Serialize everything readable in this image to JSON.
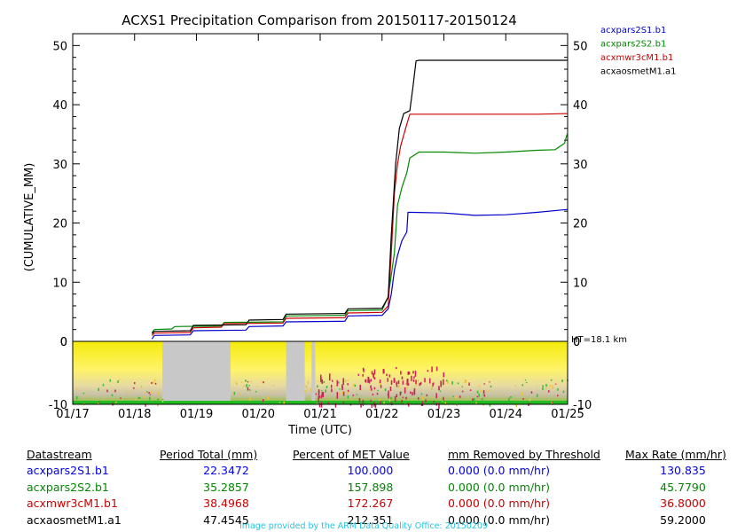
{
  "chart_data": {
    "type": "line",
    "title": "ACXS1 Precipitation Comparison from 20150117-20150124",
    "xlabel": "Time (UTC)",
    "ylabel": "(CUMULATIVE_MM)",
    "x_units": "days since 2015-01-17 00:00 UTC",
    "xlim": [
      0,
      8
    ],
    "ylim": [
      0,
      52
    ],
    "yticks": [
      0,
      10,
      20,
      30,
      40,
      50
    ],
    "xtick_labels": [
      "01/17",
      "01/18",
      "01/19",
      "01/20",
      "01/21",
      "01/22",
      "01/23",
      "01/24",
      "01/25"
    ],
    "legend_position": "top-right outside",
    "series": [
      {
        "name": "acxpars2S1.b1",
        "color": "#0000cc",
        "x": [
          1.28,
          1.32,
          1.9,
          1.95,
          2.8,
          2.85,
          3.4,
          3.45,
          4.4,
          4.45,
          5.0,
          5.1,
          5.15,
          5.2,
          5.25,
          5.32,
          5.4,
          5.42,
          5.5,
          6.0,
          6.5,
          7.0,
          7.5,
          8.0
        ],
        "values": [
          0.4,
          1.0,
          1.1,
          1.8,
          1.9,
          2.5,
          2.6,
          3.3,
          3.4,
          4.3,
          4.4,
          5.5,
          8.0,
          12.0,
          14.5,
          17.0,
          18.5,
          21.8,
          21.8,
          21.7,
          21.3,
          21.4,
          21.8,
          22.3
        ]
      },
      {
        "name": "acxpars2S2.b1",
        "color": "#008800",
        "x": [
          1.28,
          1.32,
          1.6,
          1.65,
          2.4,
          2.45,
          3.4,
          3.45,
          4.4,
          4.45,
          5.0,
          5.1,
          5.2,
          5.25,
          5.32,
          5.4,
          5.45,
          5.6,
          6.0,
          6.5,
          7.0,
          7.5,
          7.8,
          7.95,
          8.0
        ],
        "values": [
          1.5,
          2.0,
          2.1,
          2.5,
          2.6,
          3.2,
          3.3,
          4.3,
          4.4,
          5.2,
          5.3,
          7.5,
          15.0,
          23.0,
          26.0,
          28.5,
          31.0,
          32.0,
          32.0,
          31.8,
          32.0,
          32.3,
          32.4,
          33.5,
          35.3
        ]
      },
      {
        "name": "acxmwr3cM1.b1",
        "color": "#cc0000",
        "x": [
          1.28,
          1.32,
          1.9,
          1.95,
          2.4,
          2.45,
          3.4,
          3.45,
          4.4,
          4.45,
          5.0,
          5.1,
          5.15,
          5.2,
          5.25,
          5.3,
          5.38,
          5.45,
          5.5,
          6.0,
          6.5,
          7.0,
          7.5,
          8.0
        ],
        "values": [
          1.0,
          1.4,
          1.5,
          2.3,
          2.4,
          3.0,
          3.1,
          3.9,
          4.0,
          4.8,
          4.9,
          6.0,
          15.0,
          25.0,
          30.0,
          33.0,
          36.0,
          38.4,
          38.4,
          38.4,
          38.4,
          38.4,
          38.4,
          38.5
        ]
      },
      {
        "name": "acxaosmetM1.a1",
        "color": "#000000",
        "x": [
          1.28,
          1.32,
          1.9,
          1.95,
          2.8,
          2.85,
          3.4,
          3.45,
          4.4,
          4.45,
          5.0,
          5.1,
          5.15,
          5.22,
          5.28,
          5.35,
          5.45,
          5.5,
          5.55,
          5.6,
          6.0,
          6.5,
          7.0,
          7.5,
          8.0
        ],
        "values": [
          1.3,
          1.7,
          1.8,
          2.7,
          2.8,
          3.6,
          3.7,
          4.6,
          4.7,
          5.5,
          5.6,
          7.5,
          18.0,
          30.0,
          36.0,
          38.5,
          39.0,
          43.0,
          47.4,
          47.5,
          47.5,
          47.5,
          47.5,
          47.5,
          47.5
        ]
      }
    ],
    "lower_panel": {
      "type": "heatmap",
      "label": "HT=18.1 km",
      "ylim": [
        -10,
        0
      ],
      "yticks": [
        0,
        -10
      ],
      "missing_color": "#c8c8c8",
      "missing_intervals": [
        [
          1.45,
          2.55
        ],
        [
          3.45,
          3.75
        ],
        [
          3.86,
          3.92
        ]
      ],
      "fill_colors": [
        "#f5eb0a",
        "#fff36a",
        "#f1c232",
        "#b9c86e",
        "#33bb33",
        "#cc2255"
      ]
    }
  },
  "table": {
    "headers": [
      "Datastream",
      "Period Total (mm)",
      "Percent of MET Value",
      "mm Removed by Threshold",
      "Max Rate (mm/hr)"
    ],
    "rows": [
      {
        "color": "#0000ee",
        "cells": [
          "acxpars2S1.b1",
          "22.3472",
          "100.000",
          "0.000 (0.0 mm/hr)",
          "130.835"
        ]
      },
      {
        "color": "#008800",
        "cells": [
          "acxpars2S2.b1",
          "35.2857",
          "157.898",
          "0.000 (0.0 mm/hr)",
          "45.7790"
        ]
      },
      {
        "color": "#cc0000",
        "cells": [
          "acxmwr3cM1.b1",
          "38.4968",
          "172.267",
          "0.000 (0.0 mm/hr)",
          "36.8000"
        ]
      },
      {
        "color": "#000000",
        "cells": [
          "acxaosmetM1.a1",
          "47.4545",
          "212.351",
          "0.000 (0.0 mm/hr)",
          "59.2000"
        ]
      }
    ]
  },
  "credit": "Image provided by the ARM Data Quality Office: 20150209"
}
